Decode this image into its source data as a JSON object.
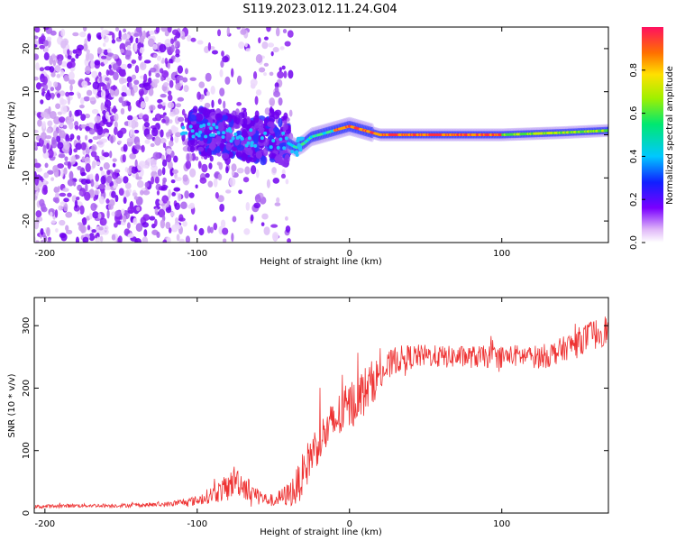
{
  "title": "S119.2023.012.11.24.G04",
  "chart_data": [
    {
      "type": "heatmap",
      "xlabel": "Height of straight line (km)",
      "ylabel": "Frequency (Hz)",
      "xlim": [
        -207,
        170
      ],
      "ylim": [
        -25,
        25
      ],
      "x_ticks": [
        -200,
        -100,
        0,
        100
      ],
      "y_ticks": [
        -20,
        -10,
        0,
        10,
        20
      ],
      "ridge": {
        "x": [
          -100,
          -80,
          -60,
          -45,
          -40,
          -35,
          -30,
          -25,
          -20,
          -10,
          0,
          10,
          20,
          60,
          100,
          140,
          170
        ],
        "y": [
          1,
          0,
          -1,
          -1.5,
          -2,
          -3,
          -2,
          -0.5,
          0,
          1,
          2,
          1,
          0,
          0,
          0,
          0.5,
          1
        ]
      },
      "grid": false,
      "colorbar": {
        "label": "Normalized spectral amplitude",
        "range": [
          0,
          1
        ],
        "ticks": [
          0.0,
          0.2,
          0.4,
          0.6,
          0.8
        ]
      }
    },
    {
      "type": "line",
      "xlabel": "Height of straight line (km)",
      "ylabel": "SNR (10 * v/v)",
      "xlim": [
        -207,
        170
      ],
      "ylim": [
        0,
        345
      ],
      "x_ticks": [
        -200,
        -100,
        0,
        100
      ],
      "y_ticks": [
        0,
        100,
        200,
        300
      ],
      "color": "#ee3333",
      "series": [
        {
          "x": [
            -207,
            -180,
            -150,
            -120,
            -100,
            -90,
            -80,
            -75,
            -70,
            -65,
            -60,
            -55,
            -50,
            -45,
            -40,
            -35,
            -30,
            -25,
            -20,
            -15,
            -10,
            -5,
            0,
            5,
            10,
            15,
            20,
            25,
            30,
            40,
            50,
            60,
            70,
            80,
            90,
            100,
            110,
            120,
            130,
            140,
            150,
            160,
            170
          ],
          "values": [
            10,
            12,
            12,
            14,
            20,
            30,
            40,
            55,
            45,
            35,
            28,
            22,
            20,
            25,
            30,
            40,
            65,
            95,
            115,
            130,
            145,
            160,
            170,
            185,
            195,
            210,
            222,
            232,
            245,
            250,
            252,
            250,
            250,
            250,
            250,
            250,
            252,
            250,
            252,
            262,
            275,
            285,
            295
          ],
          "noise": [
            3,
            3,
            3,
            4,
            8,
            14,
            22,
            25,
            22,
            18,
            15,
            10,
            10,
            14,
            20,
            30,
            35,
            35,
            35,
            35,
            38,
            40,
            40,
            40,
            40,
            35,
            30,
            25,
            22,
            20,
            18,
            18,
            18,
            18,
            18,
            18,
            18,
            18,
            20,
            20,
            22,
            25,
            25
          ]
        }
      ],
      "grid": false
    }
  ]
}
